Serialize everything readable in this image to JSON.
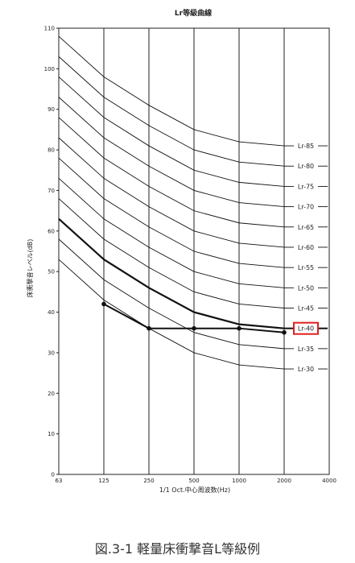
{
  "caption": "図.3-1 軽量床衝撃音L等級例",
  "chart_data": {
    "type": "line",
    "title": "Lr等級曲線",
    "xlabel": "1/1 Oct.中心周波数(Hz)",
    "ylabel": "床衝撃音レベル(dB)",
    "x": [
      "63",
      "125",
      "250",
      "500",
      "1000",
      "2000",
      "4000"
    ],
    "ylim": [
      0,
      110
    ],
    "yticks": [
      0,
      10,
      20,
      30,
      40,
      50,
      60,
      70,
      80,
      90,
      100,
      110
    ],
    "grid": "vertical",
    "series": [
      {
        "name": "Lr-85",
        "x": [
          "63",
          "125",
          "250",
          "500",
          "1000",
          "2000"
        ],
        "values": [
          108,
          98,
          91,
          85,
          82,
          81
        ]
      },
      {
        "name": "Lr-80",
        "x": [
          "63",
          "125",
          "250",
          "500",
          "1000",
          "2000"
        ],
        "values": [
          103,
          93,
          86,
          80,
          77,
          76
        ]
      },
      {
        "name": "Lr-75",
        "x": [
          "63",
          "125",
          "250",
          "500",
          "1000",
          "2000"
        ],
        "values": [
          98,
          88,
          81,
          75,
          72,
          71
        ]
      },
      {
        "name": "Lr-70",
        "x": [
          "63",
          "125",
          "250",
          "500",
          "1000",
          "2000"
        ],
        "values": [
          93,
          83,
          76,
          70,
          67,
          66
        ]
      },
      {
        "name": "Lr-65",
        "x": [
          "63",
          "125",
          "250",
          "500",
          "1000",
          "2000"
        ],
        "values": [
          88,
          78,
          71,
          65,
          62,
          61
        ]
      },
      {
        "name": "Lr-60",
        "x": [
          "63",
          "125",
          "250",
          "500",
          "1000",
          "2000"
        ],
        "values": [
          83,
          73,
          66,
          60,
          57,
          56
        ]
      },
      {
        "name": "Lr-55",
        "x": [
          "63",
          "125",
          "250",
          "500",
          "1000",
          "2000"
        ],
        "values": [
          78,
          68,
          61,
          55,
          52,
          51
        ]
      },
      {
        "name": "Lr-50",
        "x": [
          "63",
          "125",
          "250",
          "500",
          "1000",
          "2000"
        ],
        "values": [
          73,
          63,
          56,
          50,
          47,
          46
        ]
      },
      {
        "name": "Lr-45",
        "x": [
          "63",
          "125",
          "250",
          "500",
          "1000",
          "2000"
        ],
        "values": [
          68,
          58,
          51,
          45,
          42,
          41
        ]
      },
      {
        "name": "Lr-40",
        "x": [
          "63",
          "125",
          "250",
          "500",
          "1000",
          "2000"
        ],
        "values": [
          63,
          53,
          46,
          40,
          37,
          36
        ],
        "emphasis": true
      },
      {
        "name": "Lr-35",
        "x": [
          "63",
          "125",
          "250",
          "500",
          "1000",
          "2000"
        ],
        "values": [
          58,
          48,
          41,
          35,
          32,
          31
        ]
      },
      {
        "name": "Lr-30",
        "x": [
          "63",
          "125",
          "250",
          "500",
          "1000",
          "2000"
        ],
        "values": [
          53,
          43,
          36,
          30,
          27,
          26
        ]
      }
    ],
    "measured": {
      "x": [
        "125",
        "250",
        "500",
        "1000",
        "2000"
      ],
      "values": [
        42,
        36,
        36,
        36,
        35
      ]
    },
    "highlight_label": "Lr-40",
    "highlight_color": "#e02020",
    "line_color": "#111111"
  }
}
